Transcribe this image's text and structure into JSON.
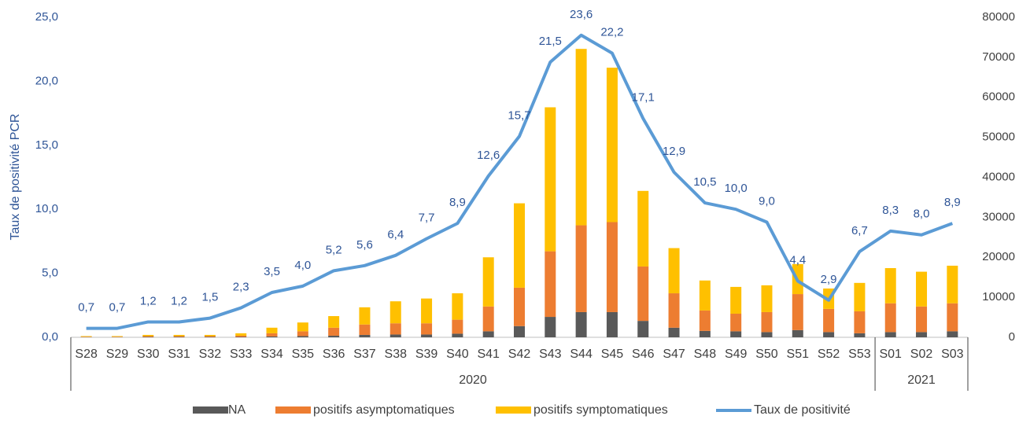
{
  "chart_data": {
    "type": "bar+line",
    "y_label": "Taux de positivité PCR",
    "categories": [
      "S28",
      "S29",
      "S30",
      "S31",
      "S32",
      "S33",
      "S34",
      "S35",
      "S36",
      "S37",
      "S38",
      "S39",
      "S40",
      "S41",
      "S42",
      "S43",
      "S44",
      "S45",
      "S46",
      "S47",
      "S48",
      "S49",
      "S50",
      "S51",
      "S52",
      "S53",
      "S01",
      "S02",
      "S03"
    ],
    "x_groups": [
      {
        "name": "2020",
        "from": "S28",
        "to": "S53"
      },
      {
        "name": "2021",
        "from": "S01",
        "to": "S03"
      }
    ],
    "ylim": [
      0,
      25
    ],
    "yticks": [
      {
        "value": 0,
        "label": "0,0"
      },
      {
        "value": 5,
        "label": "5,0"
      },
      {
        "value": 10,
        "label": "10,0"
      },
      {
        "value": 15,
        "label": "15,0"
      },
      {
        "value": 20,
        "label": "20,0"
      },
      {
        "value": 25,
        "label": "25,0"
      }
    ],
    "y2lim": [
      0,
      80000
    ],
    "y2ticks": [
      0,
      10000,
      20000,
      30000,
      40000,
      50000,
      60000,
      70000,
      80000
    ],
    "series": [
      {
        "name": "NA",
        "type": "bar",
        "axis": "y2",
        "color": "#595959",
        "values": [
          50,
          50,
          100,
          100,
          100,
          100,
          200,
          300,
          400,
          600,
          700,
          700,
          900,
          1500,
          2800,
          5100,
          6300,
          6300,
          4100,
          2400,
          1600,
          1500,
          1300,
          1800,
          1300,
          1000,
          1300,
          1300,
          1500
        ]
      },
      {
        "name": "positifs asymptomatiques",
        "type": "bar",
        "axis": "y2",
        "color": "#ed7d31",
        "values": [
          100,
          100,
          200,
          200,
          200,
          300,
          800,
          1200,
          2000,
          2600,
          2800,
          2800,
          3500,
          6200,
          9600,
          16400,
          21700,
          22500,
          13600,
          8600,
          5100,
          4400,
          5000,
          9000,
          5800,
          5500,
          7200,
          6400,
          7000
        ]
      },
      {
        "name": "positifs symptomatiques",
        "type": "bar",
        "axis": "y2",
        "color": "#ffc000",
        "values": [
          150,
          150,
          300,
          300,
          300,
          600,
          1400,
          2200,
          2900,
          4300,
          5500,
          6200,
          6600,
          12300,
          21100,
          36000,
          44100,
          38600,
          18900,
          11300,
          7500,
          6700,
          6700,
          7500,
          5100,
          7100,
          8800,
          8700,
          9400
        ]
      },
      {
        "name": "Taux de positivité",
        "type": "line",
        "axis": "y",
        "color": "#5b9bd5",
        "values": [
          0.7,
          0.7,
          1.2,
          1.2,
          1.5,
          2.3,
          3.5,
          4.0,
          5.2,
          5.6,
          6.4,
          7.7,
          8.9,
          12.6,
          15.7,
          21.5,
          23.6,
          22.2,
          17.1,
          12.9,
          10.5,
          10.0,
          9.0,
          4.4,
          2.9,
          6.7,
          8.3,
          8.0,
          8.9
        ],
        "value_labels": [
          "0,7",
          "0,7",
          "1,2",
          "1,2",
          "1,5",
          "2,3",
          "3,5",
          "4,0",
          "5,2",
          "5,6",
          "6,4",
          "7,7",
          "8,9",
          "12,6",
          "15,7",
          "21,5",
          "23,6",
          "22,2",
          "17,1",
          "12,9",
          "10,5",
          "10,0",
          "9,0",
          "4,4",
          "2,9",
          "6,7",
          "8,3",
          "8,0",
          "8,9"
        ]
      }
    ]
  }
}
